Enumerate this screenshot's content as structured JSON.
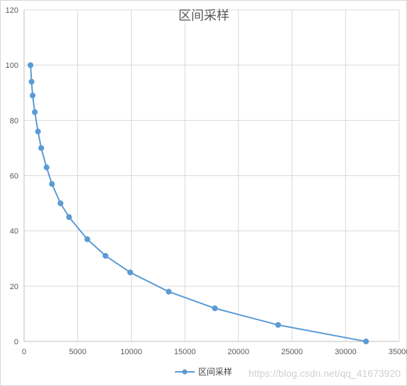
{
  "chart_data": {
    "type": "scatter",
    "title": "区间采样",
    "xlabel": "",
    "ylabel": "",
    "xlim": [
      0,
      35000
    ],
    "ylim": [
      0,
      120
    ],
    "xticks": [
      0,
      5000,
      10000,
      15000,
      20000,
      25000,
      30000,
      35000
    ],
    "xtick_labels": [
      "0",
      "5000",
      "10000",
      "15000",
      "20000",
      "25000",
      "30000",
      "35000"
    ],
    "yticks": [
      0,
      20,
      40,
      60,
      80,
      100,
      120
    ],
    "ytick_labels": [
      "0",
      "20",
      "40",
      "60",
      "80",
      "100",
      "120"
    ],
    "grid": true,
    "legend": "bottom",
    "style": "line with markers",
    "series": [
      {
        "name": "区间采样",
        "color": "#5b9bd5",
        "x": [
          600,
          700,
          800,
          1000,
          1300,
          1600,
          2100,
          2600,
          3400,
          4200,
          5900,
          7600,
          9900,
          13500,
          17800,
          23700,
          31900
        ],
        "y": [
          100,
          94,
          89,
          83,
          76,
          70,
          63,
          57,
          50,
          45,
          37,
          31,
          25,
          18,
          12,
          6,
          0
        ]
      }
    ]
  },
  "watermark": "https://blog.csdn.net/qq_41673920"
}
